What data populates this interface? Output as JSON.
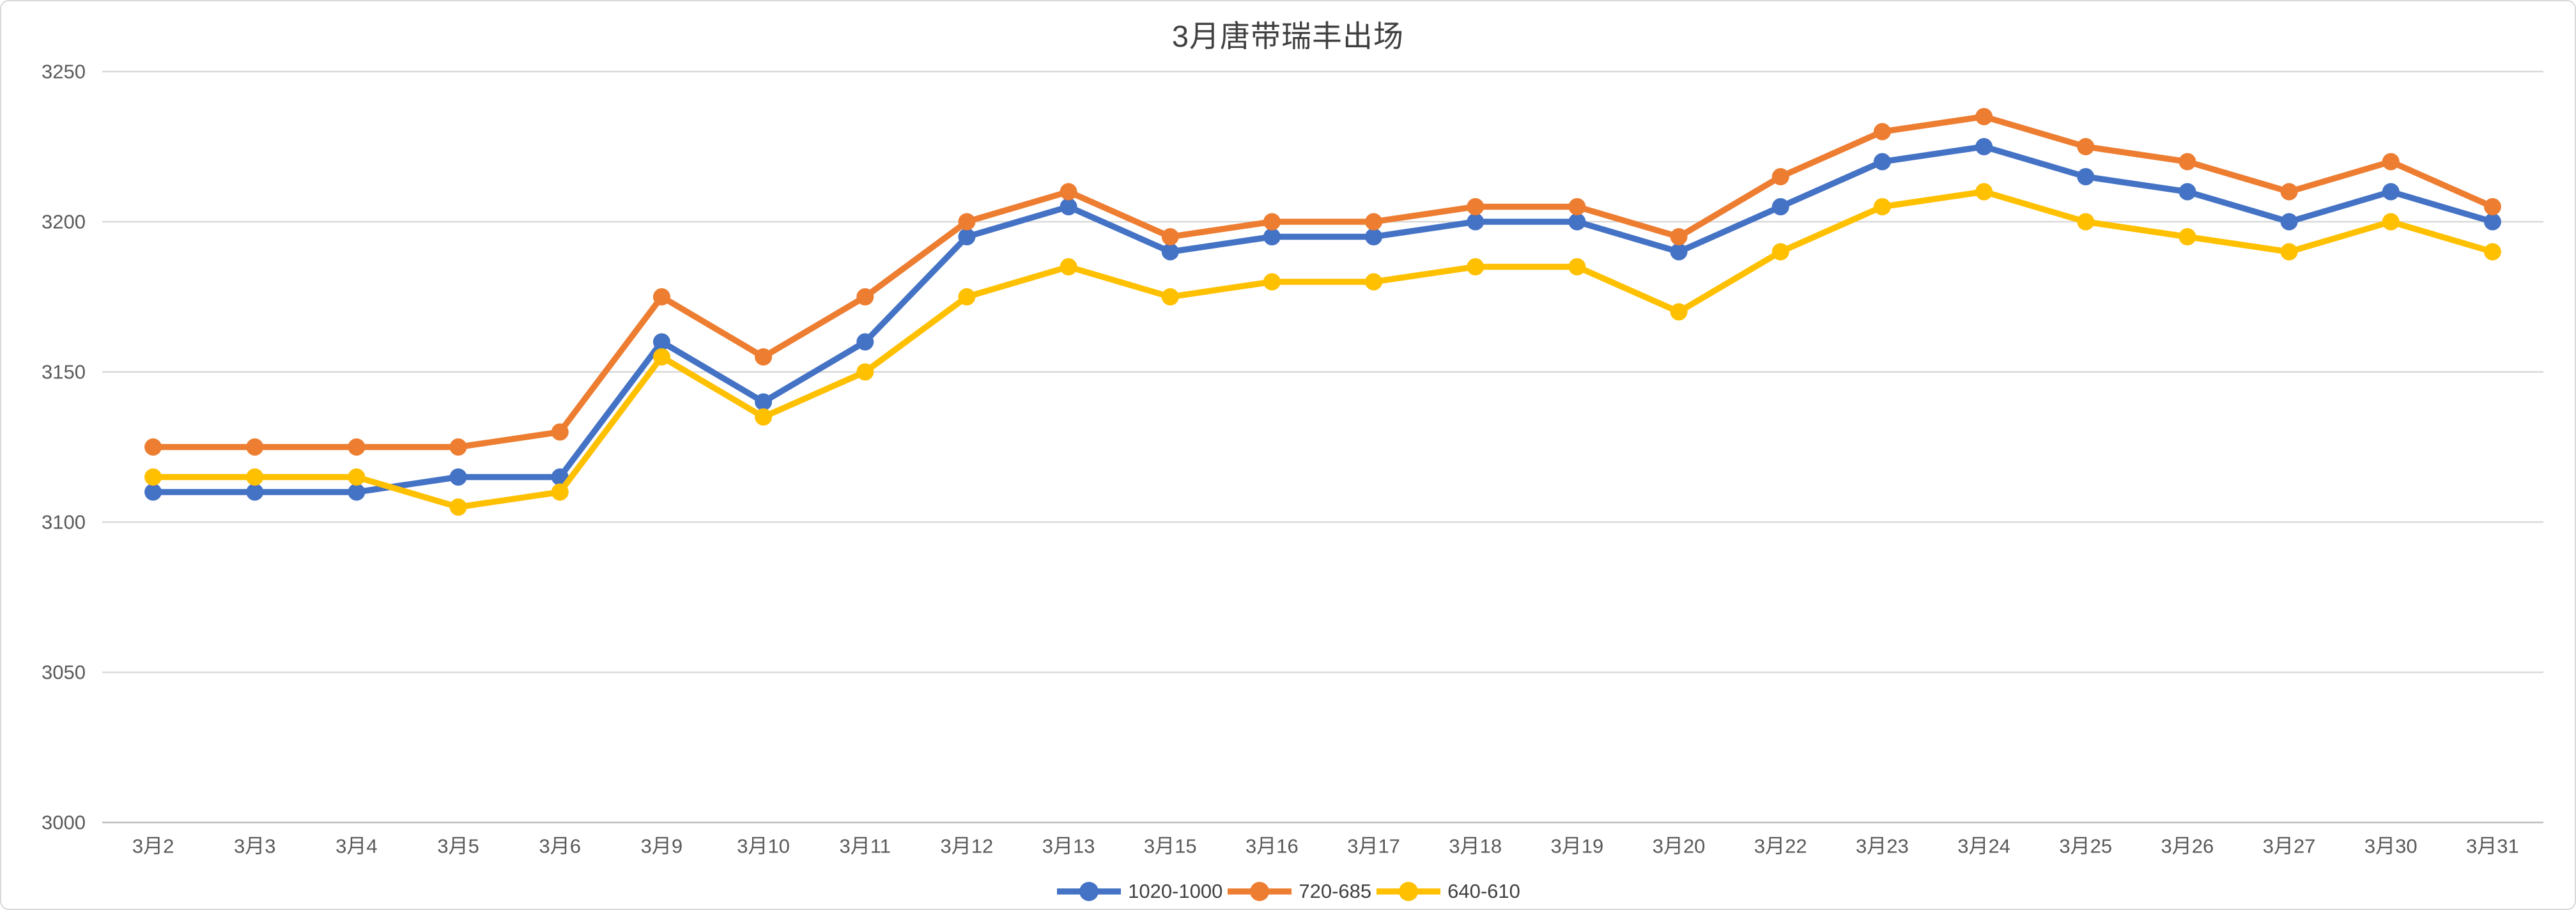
{
  "chart_data": {
    "type": "line",
    "title": "3月唐带瑞丰出场",
    "categories": [
      "3月2",
      "3月3",
      "3月4",
      "3月5",
      "3月6",
      "3月9",
      "3月10",
      "3月11",
      "3月12",
      "3月13",
      "3月15",
      "3月16",
      "3月17",
      "3月18",
      "3月19",
      "3月20",
      "3月22",
      "3月23",
      "3月24",
      "3月25",
      "3月26",
      "3月27",
      "3月30",
      "3月31"
    ],
    "series": [
      {
        "name": "1020-1000",
        "color": "#4472C4",
        "values": [
          3110,
          3110,
          3110,
          3115,
          3115,
          3160,
          3140,
          3160,
          3195,
          3205,
          3190,
          3195,
          3195,
          3200,
          3200,
          3190,
          3205,
          3220,
          3225,
          3215,
          3210,
          3200,
          3210,
          3200
        ]
      },
      {
        "name": "720-685",
        "color": "#ED7D31",
        "values": [
          3125,
          3125,
          3125,
          3125,
          3130,
          3175,
          3155,
          3175,
          3200,
          3210,
          3195,
          3200,
          3200,
          3205,
          3205,
          3195,
          3215,
          3230,
          3235,
          3225,
          3220,
          3210,
          3220,
          3205
        ]
      },
      {
        "name": "640-610",
        "color": "#FFC000",
        "values": [
          3115,
          3115,
          3115,
          3105,
          3110,
          3155,
          3135,
          3150,
          3175,
          3185,
          3175,
          3180,
          3180,
          3185,
          3185,
          3170,
          3190,
          3205,
          3210,
          3200,
          3195,
          3190,
          3200,
          3190
        ]
      }
    ],
    "y_axis": {
      "min": 3000,
      "max": 3250,
      "step": 50,
      "tick_labels": [
        "3000",
        "3050",
        "3100",
        "3150",
        "3200",
        "3250"
      ]
    },
    "xlabel": "",
    "ylabel": "",
    "grid": "horizontal",
    "legend_position": "bottom-center",
    "colors": {
      "grid_line": "#d9d9d9",
      "axis_line": "#bfbfbf",
      "tick_text": "#595959",
      "title_text": "#404040",
      "legend_text": "#404040"
    }
  }
}
